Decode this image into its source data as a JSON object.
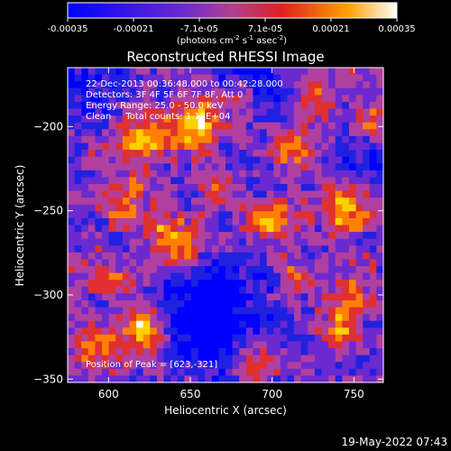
{
  "chart_data": {
    "type": "heatmap",
    "title": "Reconstructed RHESSI Image",
    "xlabel": "Heliocentric X (arcsec)",
    "ylabel": "Heliocentric Y (arcsec)",
    "xlim": [
      575,
      768
    ],
    "ylim": [
      -352,
      -165
    ],
    "x_ticks": [
      600,
      650,
      700,
      750
    ],
    "y_ticks": [
      -200,
      -250,
      -300,
      -350
    ],
    "colorbar": {
      "range": [
        -0.00035,
        0.00035
      ],
      "tick_labels": [
        "-0.00035",
        "-0.00021",
        "-7.1e-05",
        "7.1e-05",
        "0.00021",
        "0.00035"
      ],
      "unit_label": "(photons cm",
      "unit_exp1": "-2",
      "unit_mid": " s",
      "unit_exp2": "-1",
      "unit_end": " asec",
      "unit_exp3": "-2",
      "unit_close": ")"
    },
    "annotations": [
      "22-Dec-2013 00:36:48.000 to 00:42:28.000",
      "Detectors: 3F 4F 5F 6F 7F 8F, Att 0",
      "Energy Range: 25.0 - 50.0 keV",
      "Clean     Total counts: 1.18E+04"
    ],
    "peak_label": "Position of Peak = [623,-321]",
    "peak": [
      623,
      -321
    ],
    "grid": false,
    "colormap": [
      "#0000ff",
      "#2020e0",
      "#6a2ad0",
      "#b040a0",
      "#e03030",
      "#ff8000",
      "#ffd000",
      "#ffffff"
    ]
  },
  "footer": {
    "timestamp": "19-May-2022 07:43"
  }
}
